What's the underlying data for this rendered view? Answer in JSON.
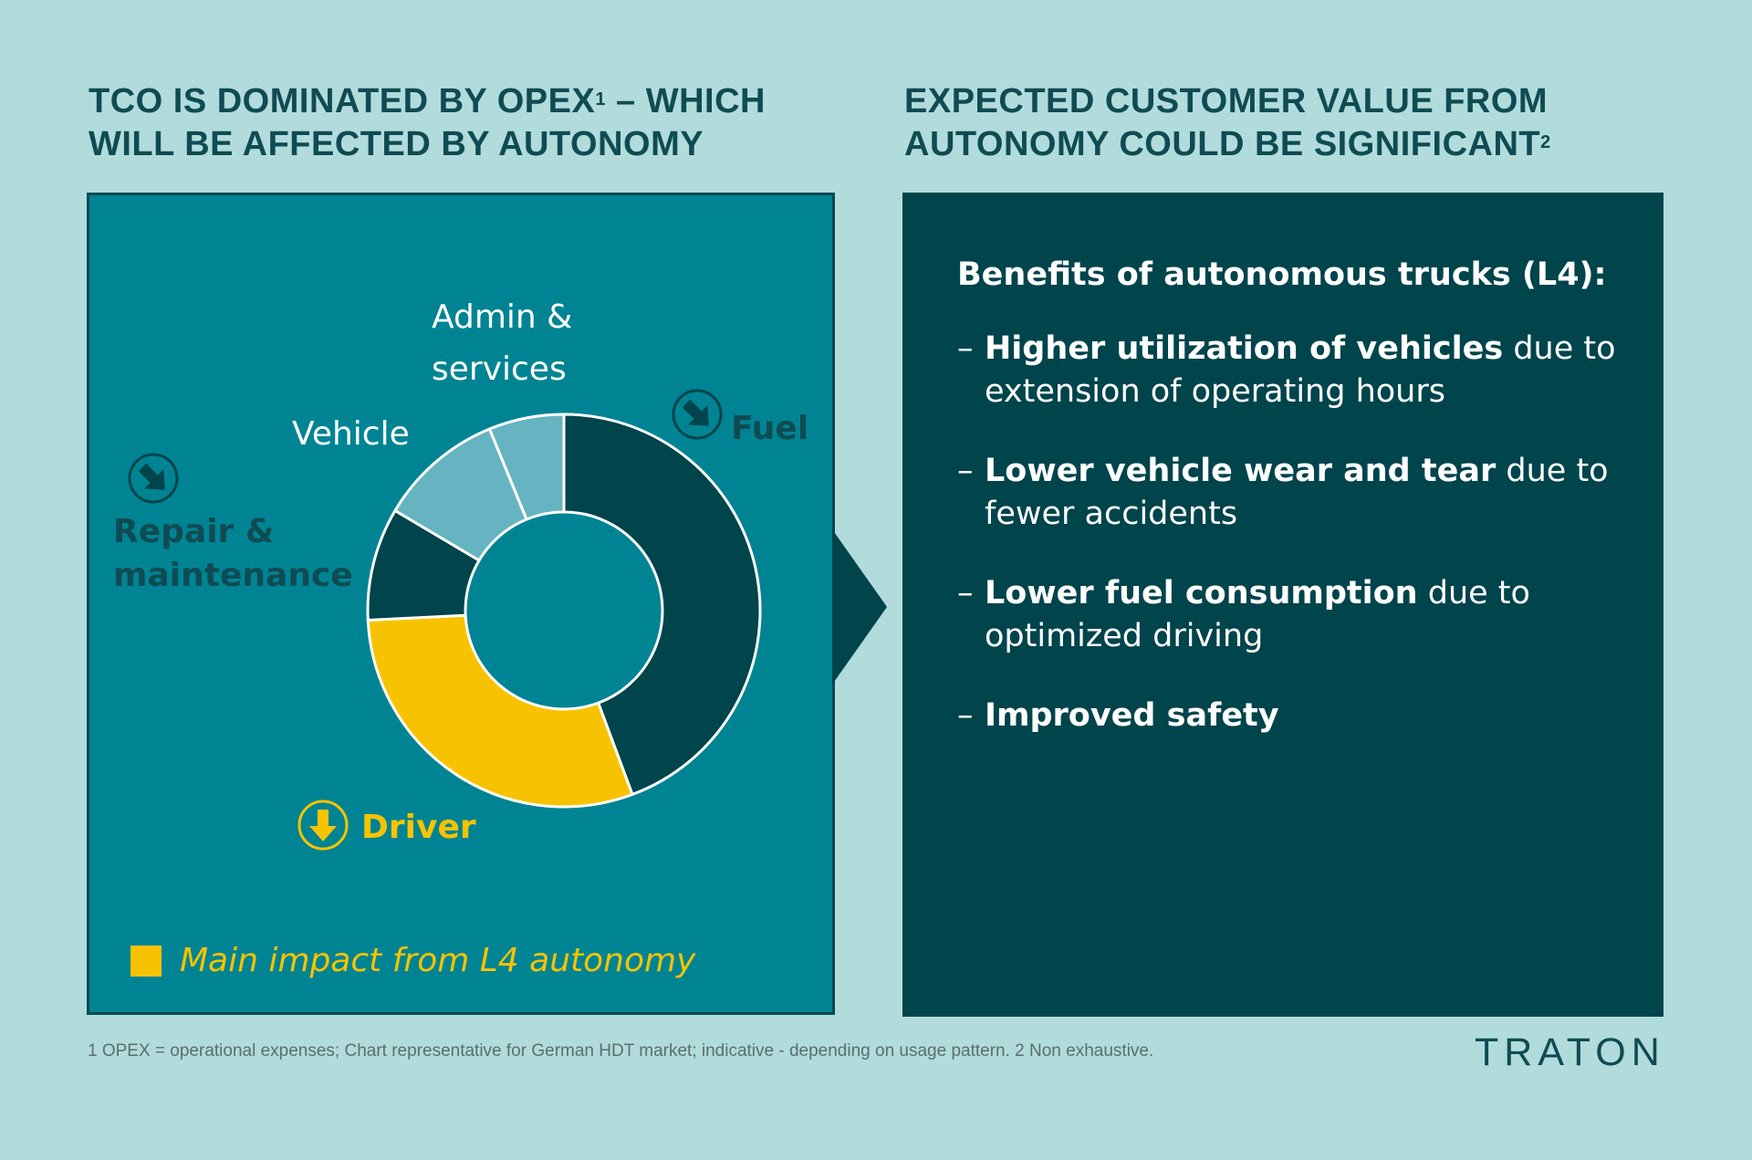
{
  "headings": {
    "left": {
      "line1_pre": "TCO IS DOMINATED BY OPEX",
      "line1_sup": "1",
      "line1_post": " – WHICH",
      "line2": "WILL BE AFFECTED BY AUTONOMY"
    },
    "right": {
      "line1": "EXPECTED CUSTOMER VALUE FROM",
      "line2_pre": "AUTONOMY COULD BE SIGNIFICANT",
      "line2_sup": "2"
    }
  },
  "chart_data": {
    "type": "pie",
    "variant": "donut",
    "title": "",
    "start_angle_deg": 0,
    "direction": "clockwise",
    "slices": [
      {
        "label": "Fuel",
        "value": 43,
        "color": "#00444c",
        "impact": "down"
      },
      {
        "label": "Driver",
        "value": 29,
        "color": "#f7c300",
        "impact": "down"
      },
      {
        "label": "Repair & maintenance",
        "value": 9,
        "color": "#00444c",
        "impact": "down"
      },
      {
        "label": "Vehicle",
        "value": 10,
        "color": "#66b4c1",
        "impact": "none"
      },
      {
        "label": "Admin & services",
        "value": 6,
        "color": "#66b4c1",
        "impact": "none"
      }
    ],
    "labels": {
      "admin_line1": "Admin &",
      "admin_line2": "services",
      "vehicle": "Vehicle",
      "fuel": "Fuel",
      "repair_line1": "Repair &",
      "repair_line2": "maintenance",
      "driver": "Driver"
    },
    "legend": {
      "text": "Main impact from L4 autonomy",
      "color": "#f7c300"
    }
  },
  "benefits": {
    "title": "Benefits of autonomous trucks (L4):",
    "dash": "–",
    "items": [
      {
        "bold": "Higher utilization of vehicles",
        "rest1": " due to",
        "rest2": "extension of operating hours"
      },
      {
        "bold": "Lower vehicle wear and tear",
        "rest1": " due to",
        "rest2": "fewer accidents"
      },
      {
        "bold": "Lower fuel consumption",
        "rest1": " due to",
        "rest2": "optimized driving"
      },
      {
        "bold": "Improved safety",
        "rest1": "",
        "rest2": ""
      }
    ]
  },
  "footnote": "1 OPEX = operational expenses; Chart representative for German HDT market; indicative - depending on usage pattern.   2 Non exhaustive.",
  "logo": "TRATON",
  "colors": {
    "background": "#b1dcdb",
    "left_panel": "#008493",
    "right_panel": "#00444c",
    "heading": "#0f4b53",
    "accent_yellow": "#f7c300"
  }
}
